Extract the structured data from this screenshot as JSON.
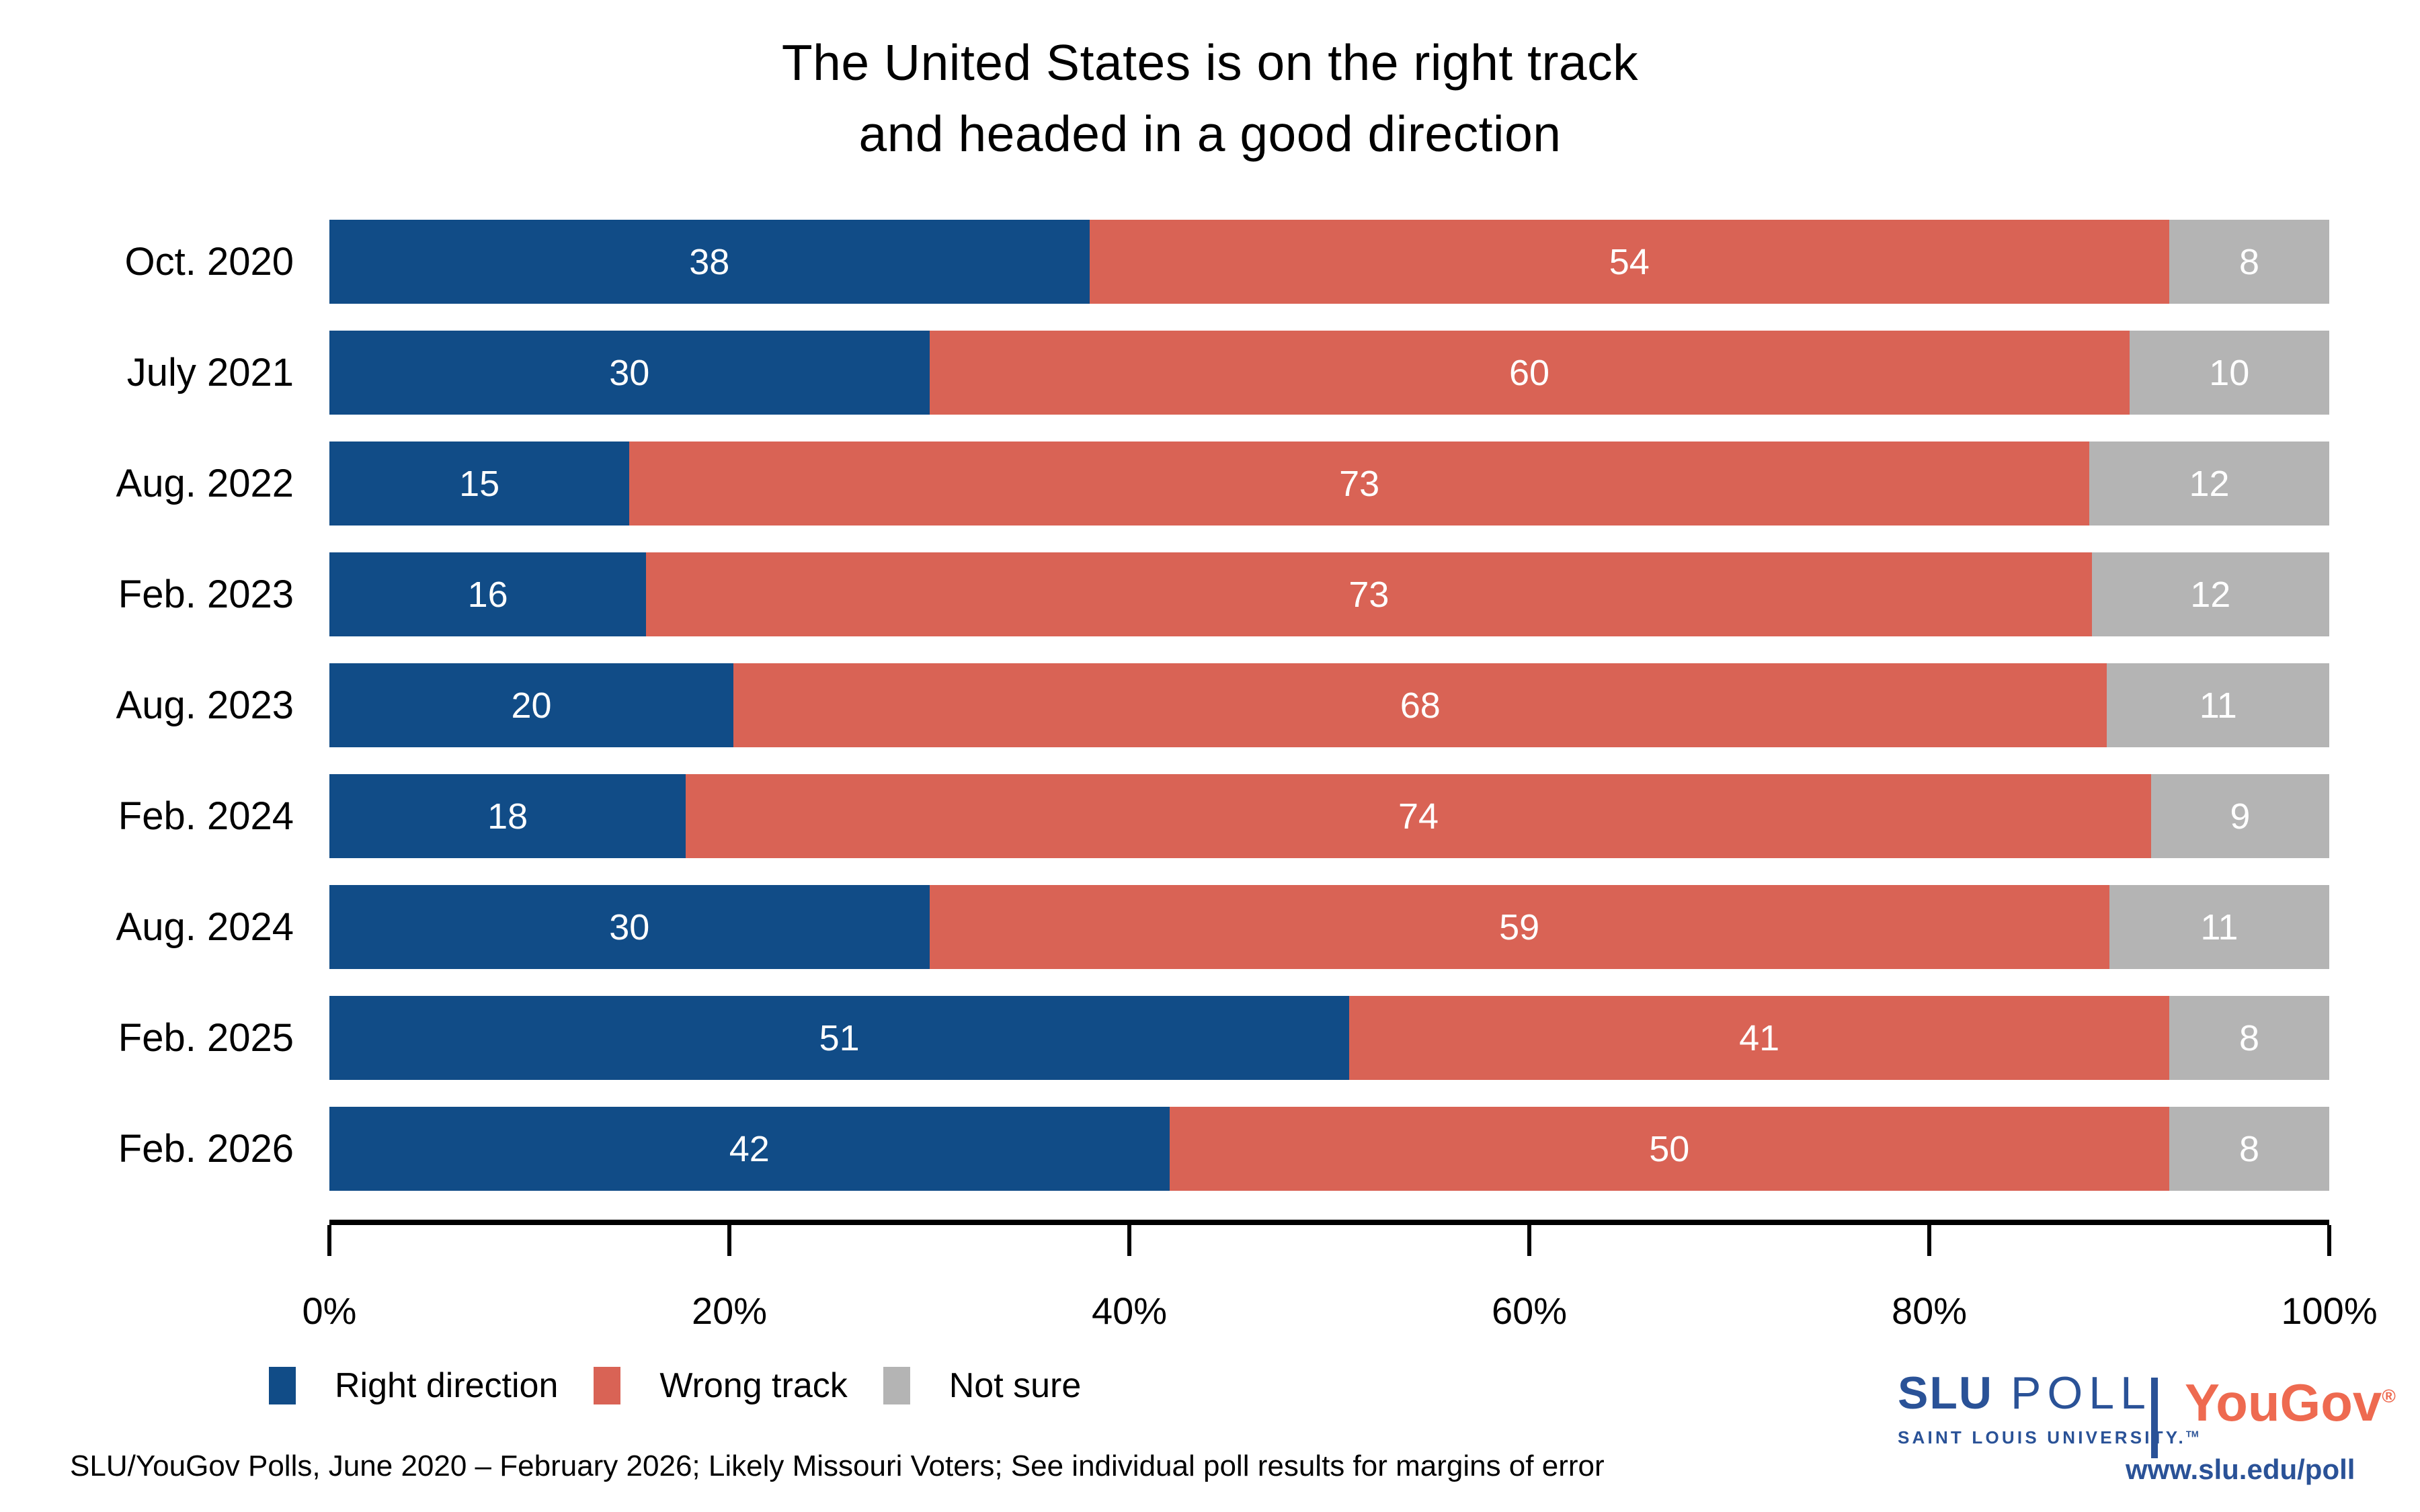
{
  "title": {
    "line1": "The United States is on the right track",
    "line2": "and headed in a good direction"
  },
  "chart_data": {
    "type": "bar",
    "orientation": "horizontal-stacked",
    "title": "The United States is on the right track and headed in a good direction",
    "categories": [
      "Oct. 2020",
      "July 2021",
      "Aug. 2022",
      "Feb. 2023",
      "Aug. 2023",
      "Feb. 2024",
      "Aug. 2024",
      "Feb. 2025",
      "Feb. 2026"
    ],
    "series": [
      {
        "name": "Right direction",
        "color": "#114C87",
        "values": [
          38,
          30,
          15,
          16,
          20,
          18,
          30,
          51,
          42
        ]
      },
      {
        "name": "Wrong track",
        "color": "#D96355",
        "values": [
          54,
          60,
          73,
          73,
          68,
          74,
          59,
          41,
          50
        ]
      },
      {
        "name": "Not sure",
        "color": "#B4B4B4",
        "values": [
          8,
          10,
          12,
          12,
          11,
          9,
          11,
          8,
          8
        ]
      }
    ],
    "xlabel": "",
    "ylabel": "",
    "xlim": [
      0,
      100
    ],
    "x_ticks": [
      "0%",
      "20%",
      "40%",
      "60%",
      "80%",
      "100%"
    ],
    "grid": false,
    "value_labels": "inside-center-white",
    "legend_position": "bottom-left"
  },
  "footer": {
    "text": "SLU/YouGov Polls, June 2020 – February 2026; Likely Missouri Voters; See individual poll results for margins of error"
  },
  "branding": {
    "slu_blue": "#2A5297",
    "yougov_red": "#EE6A50",
    "slu_poll": {
      "slu": "SLU",
      "poll": "POLL",
      "subtitle": "SAINT LOUIS UNIVERSITY.",
      "tm": "TM"
    },
    "yougov": {
      "text": "YouGov",
      "reg": "®"
    },
    "url": "www.slu.edu/poll"
  }
}
